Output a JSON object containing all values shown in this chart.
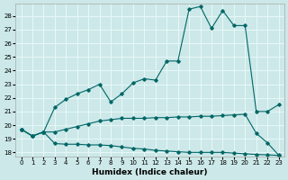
{
  "xlabel": "Humidex (Indice chaleur)",
  "bg_color": "#cce8e8",
  "grid_color": "#e8f8f8",
  "line_color": "#006666",
  "xlim": [
    -0.5,
    23.5
  ],
  "ylim": [
    17.7,
    28.9
  ],
  "yticks": [
    18,
    19,
    20,
    21,
    22,
    23,
    24,
    25,
    26,
    27,
    28
  ],
  "xticks": [
    0,
    1,
    2,
    3,
    4,
    5,
    6,
    7,
    8,
    9,
    10,
    11,
    12,
    13,
    14,
    15,
    16,
    17,
    18,
    19,
    20,
    21,
    22,
    23
  ],
  "line1_x": [
    0,
    1,
    2,
    3,
    4,
    5,
    6,
    7,
    8,
    9,
    10,
    11,
    12,
    13,
    14,
    15,
    16,
    17,
    18,
    19,
    20,
    21,
    22,
    23
  ],
  "line1_y": [
    19.7,
    19.2,
    19.5,
    18.65,
    18.6,
    18.6,
    18.55,
    18.55,
    18.5,
    18.4,
    18.3,
    18.25,
    18.15,
    18.1,
    18.05,
    18.0,
    18.0,
    18.0,
    18.0,
    17.95,
    17.9,
    17.85,
    17.82,
    17.78
  ],
  "line2_x": [
    0,
    1,
    2,
    3,
    4,
    5,
    6,
    7,
    8,
    9,
    10,
    11,
    12,
    13,
    14,
    15,
    16,
    17,
    18,
    19,
    20,
    21,
    22,
    23
  ],
  "line2_y": [
    19.7,
    19.2,
    19.5,
    19.5,
    19.7,
    19.9,
    20.1,
    20.3,
    20.4,
    20.5,
    20.5,
    20.5,
    20.55,
    20.55,
    20.6,
    20.6,
    20.65,
    20.65,
    20.7,
    20.75,
    20.8,
    19.4,
    18.7,
    17.8
  ],
  "line3_x": [
    0,
    1,
    2,
    3,
    4,
    5,
    6,
    7,
    8,
    9,
    10,
    11,
    12,
    13,
    14,
    15,
    16,
    17,
    18,
    19,
    20,
    21,
    22,
    23
  ],
  "line3_y": [
    19.7,
    19.2,
    19.5,
    21.3,
    21.9,
    22.3,
    22.6,
    23.0,
    21.7,
    22.3,
    23.1,
    23.4,
    23.3,
    24.7,
    24.7,
    28.5,
    28.7,
    27.1,
    28.4,
    27.3,
    27.3,
    21.0,
    21.0,
    21.5
  ]
}
